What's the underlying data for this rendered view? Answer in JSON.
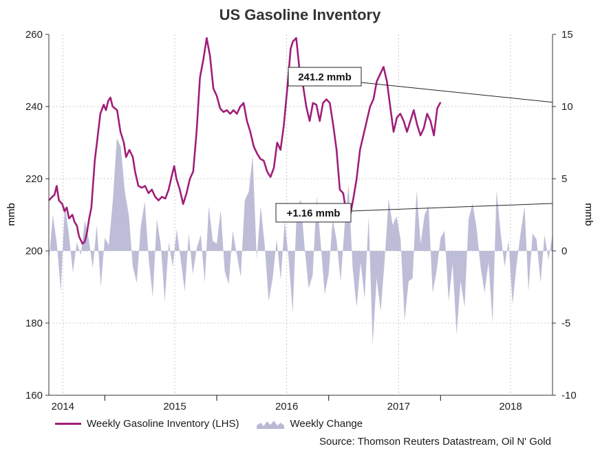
{
  "chart_data": {
    "type": "line+area",
    "title": "US Gasoline Inventory",
    "ylabel_left": "mmb",
    "ylabel_right": "mmb",
    "ylim_left": [
      160,
      260
    ],
    "ylim_right": [
      -10,
      15
    ],
    "yticks_left": [
      "160",
      "180",
      "200",
      "220",
      "240",
      "260"
    ],
    "yticks_right": [
      "-10",
      "-5",
      "0",
      "5",
      "10",
      "15"
    ],
    "x_labels": [
      "2014",
      "2015",
      "2016",
      "2017",
      "2018"
    ],
    "x_range": [
      2013.75,
      2018.25
    ],
    "year_boundaries": [
      2014.25,
      2015.25,
      2016.25,
      2017.25
    ],
    "series": [
      {
        "name": "Weekly Gasoline Inventory (LHS)",
        "axis": "left",
        "color": "#a01d78",
        "points": [
          [
            2013.75,
            214
          ],
          [
            2013.78,
            215
          ],
          [
            2013.8,
            215.5
          ],
          [
            2013.82,
            218
          ],
          [
            2013.84,
            214
          ],
          [
            2013.87,
            213
          ],
          [
            2013.89,
            211
          ],
          [
            2013.91,
            212
          ],
          [
            2013.93,
            209
          ],
          [
            2013.96,
            210
          ],
          [
            2013.98,
            208
          ],
          [
            2014.0,
            207
          ],
          [
            2014.02,
            204
          ],
          [
            2014.05,
            202
          ],
          [
            2014.07,
            202.5
          ],
          [
            2014.09,
            205
          ],
          [
            2014.11,
            209
          ],
          [
            2014.13,
            212
          ],
          [
            2014.16,
            225
          ],
          [
            2014.18,
            230
          ],
          [
            2014.21,
            238
          ],
          [
            2014.24,
            240.5
          ],
          [
            2014.26,
            239
          ],
          [
            2014.28,
            241.5
          ],
          [
            2014.3,
            242.5
          ],
          [
            2014.32,
            240
          ],
          [
            2014.36,
            239
          ],
          [
            2014.39,
            233
          ],
          [
            2014.42,
            230
          ],
          [
            2014.44,
            226
          ],
          [
            2014.47,
            228
          ],
          [
            2014.5,
            226
          ],
          [
            2014.52,
            222
          ],
          [
            2014.55,
            218
          ],
          [
            2014.58,
            217.5
          ],
          [
            2014.61,
            218
          ],
          [
            2014.64,
            216
          ],
          [
            2014.67,
            217
          ],
          [
            2014.7,
            215
          ],
          [
            2014.73,
            214
          ],
          [
            2014.76,
            215
          ],
          [
            2014.79,
            214.5
          ],
          [
            2014.82,
            217
          ],
          [
            2014.85,
            221
          ],
          [
            2014.87,
            223.5
          ],
          [
            2014.89,
            220
          ],
          [
            2014.92,
            217
          ],
          [
            2014.95,
            213
          ],
          [
            2014.98,
            216
          ],
          [
            2015.01,
            220
          ],
          [
            2015.04,
            222
          ],
          [
            2015.07,
            233
          ],
          [
            2015.1,
            248
          ],
          [
            2015.13,
            253
          ],
          [
            2015.16,
            259
          ],
          [
            2015.19,
            254
          ],
          [
            2015.22,
            245
          ],
          [
            2015.25,
            243
          ],
          [
            2015.28,
            239.5
          ],
          [
            2015.31,
            238.5
          ],
          [
            2015.34,
            239
          ],
          [
            2015.37,
            238
          ],
          [
            2015.4,
            239
          ],
          [
            2015.43,
            238
          ],
          [
            2015.46,
            240
          ],
          [
            2015.49,
            241
          ],
          [
            2015.52,
            236
          ],
          [
            2015.55,
            233
          ],
          [
            2015.58,
            229
          ],
          [
            2015.61,
            227
          ],
          [
            2015.64,
            225.5
          ],
          [
            2015.67,
            225
          ],
          [
            2015.7,
            222
          ],
          [
            2015.73,
            220.5
          ],
          [
            2015.76,
            223
          ],
          [
            2015.79,
            230
          ],
          [
            2015.82,
            228
          ],
          [
            2015.85,
            235
          ],
          [
            2015.88,
            245
          ],
          [
            2015.91,
            256
          ],
          [
            2015.93,
            258
          ],
          [
            2015.96,
            259
          ],
          [
            2015.99,
            250
          ],
          [
            2016.02,
            246
          ],
          [
            2016.05,
            240
          ],
          [
            2016.08,
            236
          ],
          [
            2016.11,
            241
          ],
          [
            2016.14,
            240.5
          ],
          [
            2016.17,
            236
          ],
          [
            2016.2,
            241
          ],
          [
            2016.23,
            242
          ],
          [
            2016.26,
            241
          ],
          [
            2016.29,
            235
          ],
          [
            2016.32,
            228
          ],
          [
            2016.35,
            217
          ],
          [
            2016.38,
            216
          ],
          [
            2016.41,
            210
          ],
          [
            2016.44,
            209.5
          ],
          [
            2016.47,
            214.5
          ],
          [
            2016.5,
            220
          ],
          [
            2016.53,
            228
          ],
          [
            2016.56,
            232
          ],
          [
            2016.59,
            236
          ],
          [
            2016.62,
            240
          ],
          [
            2016.65,
            242
          ],
          [
            2016.68,
            247
          ],
          [
            2016.71,
            249
          ],
          [
            2016.74,
            251
          ],
          [
            2016.77,
            247
          ],
          [
            2016.8,
            240
          ],
          [
            2016.83,
            233
          ],
          [
            2016.86,
            237
          ],
          [
            2016.89,
            238
          ],
          [
            2016.92,
            236
          ],
          [
            2016.95,
            233
          ],
          [
            2016.98,
            236
          ],
          [
            2017.01,
            239
          ],
          [
            2017.04,
            235
          ],
          [
            2017.07,
            232
          ],
          [
            2017.1,
            234
          ],
          [
            2017.13,
            238
          ],
          [
            2017.16,
            236
          ],
          [
            2017.19,
            232
          ],
          [
            2017.22,
            239.5
          ],
          [
            2017.25,
            241.2
          ]
        ]
      },
      {
        "name": "Weekly Change",
        "axis": "right",
        "color": "#b9b9d6",
        "values": [
          -0.8,
          2.5,
          0.5,
          -2.8,
          3.2,
          1.2,
          -1.5,
          0.6,
          -0.3,
          2.1,
          0.8,
          -1.2,
          1.8,
          -2.5,
          0.9,
          0.4,
          3.5,
          7.8,
          7.2,
          4.1,
          2.5,
          -1.1,
          -2.2,
          1.7,
          3.4,
          -0.6,
          -3.2,
          2.2,
          0.4,
          -3.5,
          0.6,
          -1.1,
          1.5,
          -0.6,
          -2.8,
          1.2,
          -1.6,
          0.2,
          1.1,
          -2.2,
          3.1,
          0.7,
          0.5,
          2.8,
          -1.4,
          -2.3,
          1.4,
          -0.2,
          -1.8,
          3.5,
          4.1,
          6.6,
          -0.6,
          3.1,
          0.4,
          -3.5,
          -1.9,
          0.8,
          -2.0,
          2.1,
          -0.6,
          -4.3,
          2.8,
          3.6,
          0.2,
          -2.6,
          -1.7,
          3.8,
          0.6,
          -3.0,
          -1.6,
          2.2,
          0.7,
          -2.1,
          1.8,
          4.6,
          -1.2,
          -3.9,
          -0.8,
          -3.3,
          2.4,
          -6.5,
          -1.9,
          -4.2,
          -0.7,
          3.6,
          1.8,
          2.4,
          0.8,
          -4.8,
          -2.1,
          -1.9,
          4.2,
          0.5,
          2.5,
          3.1,
          -2.9,
          -1.4,
          0.9,
          1.4,
          -3.5,
          -0.9,
          -5.8,
          -2.1,
          -3.9,
          2.2,
          3.3,
          1.6,
          -1.1,
          -2.9,
          -0.8,
          -5.0,
          4.2,
          1.3,
          -1.1,
          0.7,
          -3.7,
          -1.0,
          1.2,
          3.1,
          -2.8,
          1.2,
          0.8,
          -2.2,
          1.1,
          -0.6,
          1.16
        ]
      }
    ],
    "annotations": [
      {
        "label": "241.2 mmb",
        "value": 241.2,
        "axis": "left"
      },
      {
        "label": "+1.16 mmb",
        "value": 1.16,
        "axis": "right"
      }
    ],
    "legend_position": "bottom-left",
    "grid": true,
    "source": "Source: Thomson Reuters Datastream, Oil N' Gold"
  }
}
